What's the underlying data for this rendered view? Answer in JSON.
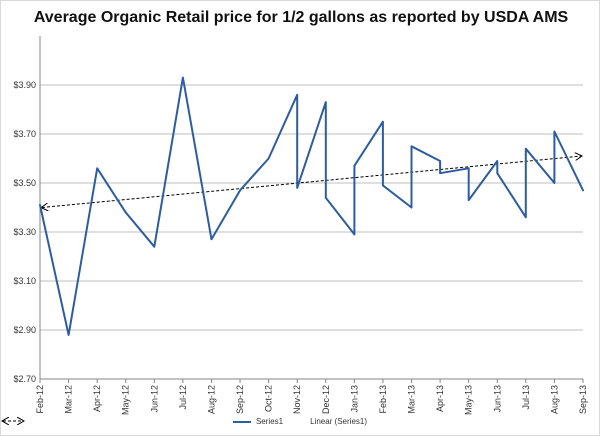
{
  "chart_data": {
    "type": "line",
    "title": "Average Organic Retail price for 1/2 gallons as reported by USDA AMS",
    "xlabel": "",
    "ylabel": "",
    "ylim": [
      2.7,
      4.1
    ],
    "y_ticks": [
      "$2.70",
      "$2.90",
      "$3.10",
      "$3.30",
      "$3.50",
      "$3.70",
      "$3.90"
    ],
    "y_tick_values": [
      2.7,
      2.9,
      3.1,
      3.3,
      3.5,
      3.7,
      3.9
    ],
    "grid": "horizontal",
    "legend_position": "bottom",
    "categories": [
      "Feb-12",
      "Mar-12",
      "Apr-12",
      "May-12",
      "Jun-12",
      "Jul-12",
      "Aug-12",
      "Sep-12",
      "Oct-12",
      "Nov-12",
      "Dec-12",
      "Jan-13",
      "Feb-13",
      "Mar-13",
      "Apr-13",
      "May-13",
      "Jun-13",
      "Jul-13",
      "Aug-13",
      "Sep-13"
    ],
    "series": [
      {
        "name": "Series1",
        "color": "#2e5d9f",
        "points": [
          [
            0,
            3.41
          ],
          [
            1,
            2.88
          ],
          [
            2,
            3.56
          ],
          [
            3,
            3.38
          ],
          [
            4,
            3.24
          ],
          [
            5,
            3.93
          ],
          [
            6,
            3.27
          ],
          [
            7,
            3.47
          ],
          [
            8,
            3.6
          ],
          [
            9,
            3.86
          ],
          [
            9,
            3.48
          ],
          [
            10,
            3.83
          ],
          [
            10,
            3.44
          ],
          [
            11,
            3.29
          ],
          [
            11,
            3.57
          ],
          [
            12,
            3.75
          ],
          [
            12,
            3.49
          ],
          [
            13,
            3.4
          ],
          [
            13,
            3.65
          ],
          [
            14,
            3.59
          ],
          [
            14,
            3.54
          ],
          [
            15,
            3.56
          ],
          [
            15,
            3.43
          ],
          [
            16,
            3.59
          ],
          [
            16,
            3.54
          ],
          [
            17,
            3.36
          ],
          [
            17,
            3.64
          ],
          [
            18,
            3.5
          ],
          [
            18,
            3.71
          ],
          [
            19,
            3.47
          ]
        ]
      }
    ],
    "trendline": {
      "name": "Linear (Series1)",
      "color": "#000000",
      "start": [
        0,
        3.4
      ],
      "end": [
        19,
        3.61
      ]
    }
  }
}
